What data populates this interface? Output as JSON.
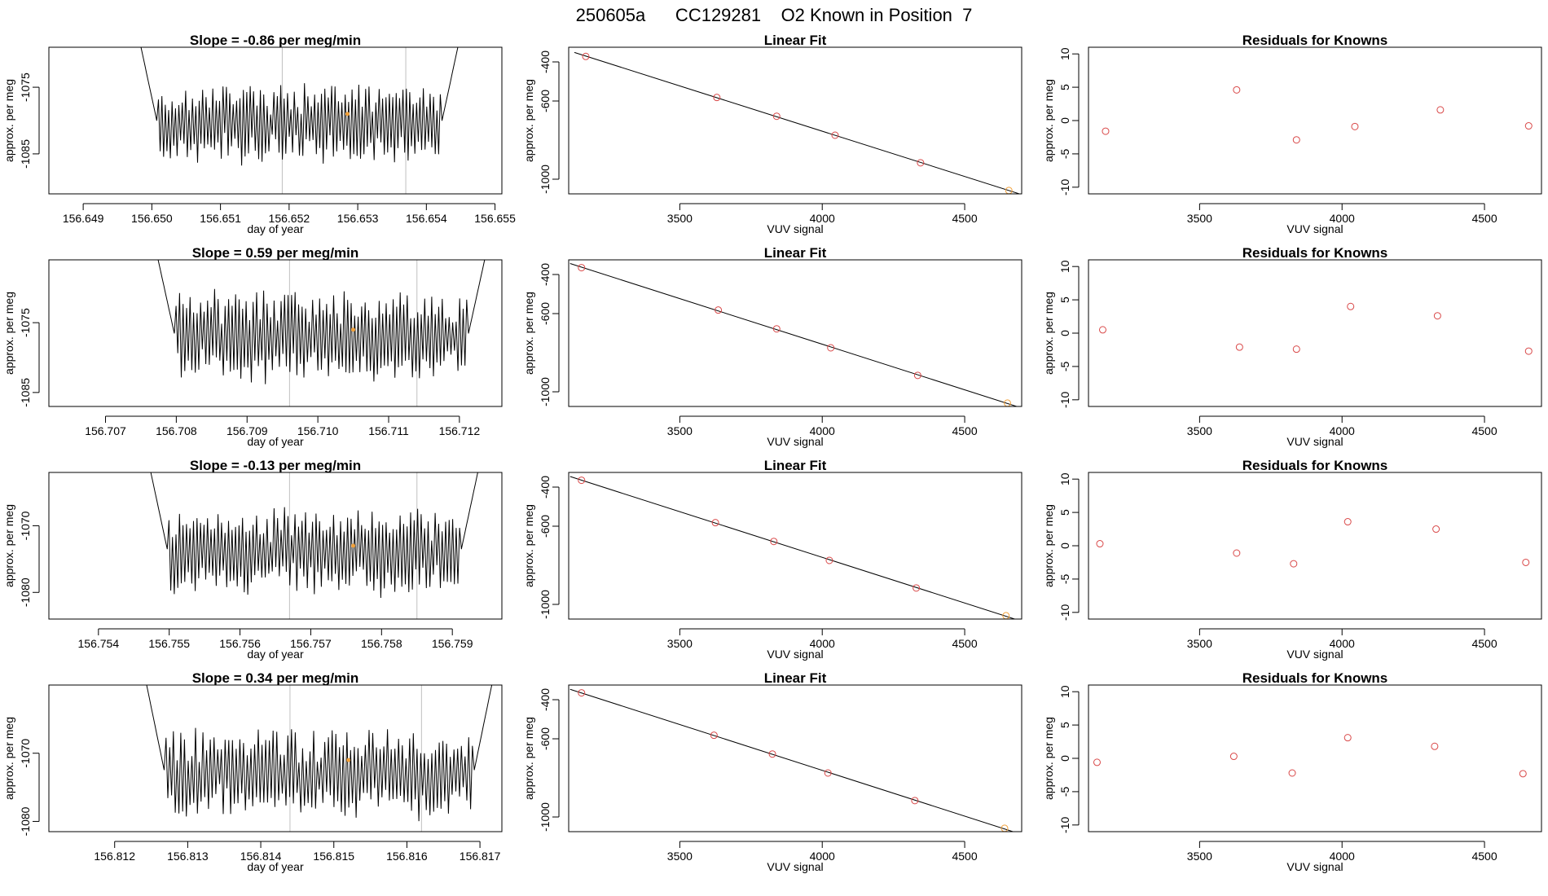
{
  "page_title": "250605a      CC129281    O2 Known in Position  7",
  "chart_data": [
    {
      "type": "line",
      "panel": "time-series",
      "row": 1,
      "title": "Slope =  -0.86  per meg/min",
      "xlabel": "day of year",
      "ylabel": "approx. per meg",
      "xlim": [
        156.6485,
        156.6551
      ],
      "ylim": [
        -1091,
        -1069
      ],
      "xticks": [
        "156.649",
        "156.650",
        "156.651",
        "156.652",
        "156.653",
        "156.654",
        "156.655"
      ],
      "yticks": [
        "-1075",
        "-1085"
      ],
      "trace_start": 156.6498,
      "trace_end": 156.6545,
      "low": -1085,
      "high": -1076,
      "vlines": [
        156.6519,
        156.6537
      ],
      "marker": {
        "x": 156.65285,
        "y": -1079,
        "color": "#f2a13a"
      },
      "colors": {
        "trace": "#000000",
        "vline": "#c0c0c0"
      }
    },
    {
      "type": "scatter",
      "panel": "linear-fit",
      "row": 1,
      "title": "Linear Fit",
      "xlabel": "VUV signal",
      "ylabel": "approx. per meg",
      "xlim": [
        3110,
        4700
      ],
      "ylim": [
        -1075,
        -325
      ],
      "xticks": [
        "3500",
        "4000",
        "4500"
      ],
      "yticks": [
        "-400",
        "-600",
        "-1000"
      ],
      "x": [
        3170,
        3630,
        3840,
        4045,
        4345,
        4655
      ],
      "y": [
        -372,
        -582,
        -678,
        -775,
        -916,
        -1058
      ],
      "orange_index": 5,
      "colors": {
        "point": "#d94848",
        "highlight": "#f2a13a",
        "line": "#000000"
      }
    },
    {
      "type": "scatter",
      "panel": "residuals",
      "row": 1,
      "title": "Residuals for Knowns",
      "xlabel": "VUV signal",
      "ylabel": "approx. per meg",
      "xlim": [
        3110,
        4700
      ],
      "ylim": [
        -11,
        11
      ],
      "xticks": [
        "3500",
        "4000",
        "4500"
      ],
      "yticks": [
        "10",
        "5",
        "0",
        "-5",
        "-10"
      ],
      "x": [
        3170,
        3630,
        3840,
        4045,
        4345,
        4655
      ],
      "y": [
        -1.6,
        4.6,
        -2.9,
        -0.9,
        1.6,
        -0.8
      ],
      "colors": {
        "point": "#d94848"
      }
    },
    {
      "type": "line",
      "panel": "time-series",
      "row": 2,
      "title": "Slope =  0.59  per meg/min",
      "xlabel": "day of year",
      "ylabel": "approx. per meg",
      "xlim": [
        156.7062,
        156.7126
      ],
      "ylim": [
        -1087,
        -1066
      ],
      "xticks": [
        "156.707",
        "156.708",
        "156.709",
        "156.710",
        "156.711",
        "156.712"
      ],
      "yticks": [
        "-1075",
        "-1085"
      ],
      "trace_start": 156.7077,
      "trace_end": 156.7124,
      "low": -1082,
      "high": -1072,
      "vlines": [
        156.7096,
        156.7114
      ],
      "marker": {
        "x": 156.7105,
        "y": -1076,
        "color": "#f2a13a"
      },
      "colors": {
        "trace": "#000000",
        "vline": "#c0c0c0"
      }
    },
    {
      "type": "scatter",
      "panel": "linear-fit",
      "row": 2,
      "title": "Linear Fit",
      "xlabel": "VUV signal",
      "ylabel": "approx. per meg",
      "xlim": [
        3110,
        4700
      ],
      "ylim": [
        -1075,
        -325
      ],
      "xticks": [
        "3500",
        "4000",
        "4500"
      ],
      "yticks": [
        "-400",
        "-600",
        "-1000"
      ],
      "x": [
        3155,
        3635,
        3840,
        4030,
        4335,
        4650
      ],
      "y": [
        -365,
        -582,
        -678,
        -775,
        -916,
        -1058
      ],
      "orange_index": 5,
      "colors": {
        "point": "#d94848",
        "highlight": "#f2a13a",
        "line": "#000000"
      }
    },
    {
      "type": "scatter",
      "panel": "residuals",
      "row": 2,
      "title": "Residuals for Knowns",
      "xlabel": "VUV signal",
      "ylabel": "approx. per meg",
      "xlim": [
        3110,
        4700
      ],
      "ylim": [
        -11,
        11
      ],
      "xticks": [
        "3500",
        "4000",
        "4500"
      ],
      "yticks": [
        "10",
        "5",
        "0",
        "-5",
        "-10"
      ],
      "x": [
        3160,
        3640,
        3840,
        4030,
        4335,
        4655
      ],
      "y": [
        0.5,
        -2.1,
        -2.4,
        4.0,
        2.6,
        -2.7
      ],
      "colors": {
        "point": "#d94848"
      }
    },
    {
      "type": "line",
      "panel": "time-series",
      "row": 3,
      "title": "Slope =  -0.13  per meg/min",
      "xlabel": "day of year",
      "ylabel": "approx. per meg",
      "xlim": [
        156.7533,
        156.7597
      ],
      "ylim": [
        -1084,
        -1062
      ],
      "xticks": [
        "156.754",
        "156.755",
        "156.756",
        "156.757",
        "156.758",
        "156.759"
      ],
      "yticks": [
        "-1070",
        "-1080"
      ],
      "trace_start": 156.7547,
      "trace_end": 156.7594,
      "low": -1079,
      "high": -1069,
      "vlines": [
        156.7567,
        156.7585
      ],
      "marker": {
        "x": 156.7576,
        "y": -1073,
        "color": "#f2a13a"
      },
      "colors": {
        "trace": "#000000",
        "vline": "#c0c0c0"
      }
    },
    {
      "type": "scatter",
      "panel": "linear-fit",
      "row": 3,
      "title": "Linear Fit",
      "xlabel": "VUV signal",
      "ylabel": "approx. per meg",
      "xlim": [
        3110,
        4700
      ],
      "ylim": [
        -1075,
        -325
      ],
      "xticks": [
        "3500",
        "4000",
        "4500"
      ],
      "yticks": [
        "-400",
        "-600",
        "-1000"
      ],
      "x": [
        3155,
        3625,
        3830,
        4025,
        4330,
        4645
      ],
      "y": [
        -365,
        -582,
        -678,
        -775,
        -916,
        -1058
      ],
      "orange_index": 5,
      "colors": {
        "point": "#d94848",
        "highlight": "#f2a13a",
        "line": "#000000"
      }
    },
    {
      "type": "scatter",
      "panel": "residuals",
      "row": 3,
      "title": "Residuals for Knowns",
      "xlabel": "VUV signal",
      "ylabel": "approx. per meg",
      "xlim": [
        3110,
        4700
      ],
      "ylim": [
        -11,
        11
      ],
      "xticks": [
        "3500",
        "4000",
        "4500"
      ],
      "yticks": [
        "10",
        "5",
        "0",
        "-5",
        "-10"
      ],
      "x": [
        3150,
        3630,
        3830,
        4020,
        4330,
        4645
      ],
      "y": [
        0.3,
        -1.1,
        -2.7,
        3.6,
        2.5,
        -2.5
      ],
      "colors": {
        "point": "#d94848"
      }
    },
    {
      "type": "line",
      "panel": "time-series",
      "row": 4,
      "title": "Slope =  0.34  per meg/min",
      "xlabel": "day of year",
      "ylabel": "approx. per meg",
      "xlim": [
        156.8111,
        156.8173
      ],
      "ylim": [
        -1081.5,
        -1060
      ],
      "xticks": [
        "156.812",
        "156.813",
        "156.814",
        "156.815",
        "156.816",
        "156.817"
      ],
      "yticks": [
        "-1070",
        "-1080"
      ],
      "trace_start": 156.8124,
      "trace_end": 156.8172,
      "low": -1078,
      "high": -1068,
      "vlines": [
        156.8144,
        156.8162
      ],
      "marker": {
        "x": 156.8152,
        "y": -1071,
        "color": "#f2a13a"
      },
      "colors": {
        "trace": "#000000",
        "vline": "#c0c0c0"
      }
    },
    {
      "type": "scatter",
      "panel": "linear-fit",
      "row": 4,
      "title": "Linear Fit",
      "xlabel": "VUV signal",
      "ylabel": "approx. per meg",
      "xlim": [
        3110,
        4700
      ],
      "ylim": [
        -1075,
        -325
      ],
      "xticks": [
        "3500",
        "4000",
        "4500"
      ],
      "yticks": [
        "-400",
        "-600",
        "-1000"
      ],
      "x": [
        3155,
        3620,
        3825,
        4020,
        4325,
        4640
      ],
      "y": [
        -365,
        -582,
        -678,
        -775,
        -916,
        -1058
      ],
      "orange_index": 5,
      "colors": {
        "point": "#d94848",
        "highlight": "#f2a13a",
        "line": "#000000"
      }
    },
    {
      "type": "scatter",
      "panel": "residuals",
      "row": 4,
      "title": "Residuals for Knowns",
      "xlabel": "VUV signal",
      "ylabel": "approx. per meg",
      "xlim": [
        3110,
        4700
      ],
      "ylim": [
        -11,
        11
      ],
      "xticks": [
        "3500",
        "4000",
        "4500"
      ],
      "yticks": [
        "10",
        "5",
        "0",
        "-5",
        "-10"
      ],
      "x": [
        3140,
        3620,
        3825,
        4020,
        4325,
        4635
      ],
      "y": [
        -0.6,
        0.3,
        -2.2,
        3.1,
        1.8,
        -2.3
      ],
      "colors": {
        "point": "#d94848"
      }
    }
  ]
}
